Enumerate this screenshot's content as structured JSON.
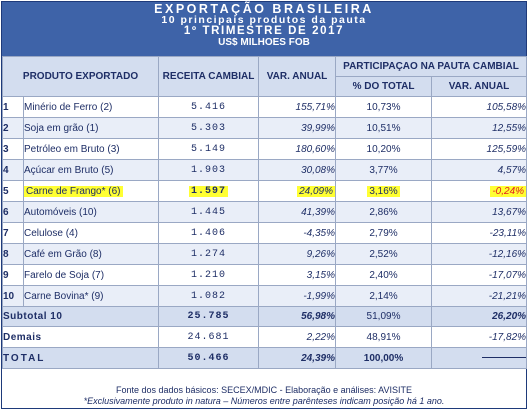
{
  "header": {
    "line1": "EXPORTAÇÃO BRASILEIRA",
    "line2": "10 principais produtos da pauta",
    "line3": "1º TRIMESTRE DE 2017",
    "line4": "US$ MILHOES FOB"
  },
  "columns": {
    "produto": "PRODUTO EXPORTADO",
    "receita": "RECEITA CAMBIAL",
    "var_anual": "VAR. ANUAL",
    "participacao": "PARTICIPAÇAO NA PAUTA CAMBIAL",
    "pct_total": "% DO TOTAL",
    "var_anual2": "VAR. ANUAL"
  },
  "rows": [
    {
      "rank": "1",
      "produto": "Minério de Ferro (2)",
      "receita": "5.416",
      "var": "155,71%",
      "pct": "10,73%",
      "var2": "105,58%"
    },
    {
      "rank": "2",
      "produto": "Soja em grão (1)",
      "receita": "5.303",
      "var": "39,99%",
      "pct": "10,51%",
      "var2": "12,55%"
    },
    {
      "rank": "3",
      "produto": "Petróleo em Bruto (3)",
      "receita": "5.149",
      "var": "180,60%",
      "pct": "10,20%",
      "var2": "125,59%"
    },
    {
      "rank": "4",
      "produto": "Açúcar em Bruto (5)",
      "receita": "1.903",
      "var": "30,08%",
      "pct": "3,77%",
      "var2": "4,57%"
    },
    {
      "rank": "5",
      "produto": "Carne de Frango* (6)",
      "receita": "1.597",
      "var": "24,09%",
      "pct": "3,16%",
      "var2": "-0,24%"
    },
    {
      "rank": "6",
      "produto": "Automóveis (10)",
      "receita": "1.445",
      "var": "41,39%",
      "pct": "2,86%",
      "var2": "13,67%"
    },
    {
      "rank": "7",
      "produto": "Celulose (4)",
      "receita": "1.406",
      "var": "-4,35%",
      "pct": "2,79%",
      "var2": "-23,11%"
    },
    {
      "rank": "8",
      "produto": "Café em Grão (8)",
      "receita": "1.274",
      "var": "9,26%",
      "pct": "2,52%",
      "var2": "-12,16%"
    },
    {
      "rank": "9",
      "produto": "Farelo de Soja (7)",
      "receita": "1.210",
      "var": "3,15%",
      "pct": "2,40%",
      "var2": "-17,07%"
    },
    {
      "rank": "10",
      "produto": "Carne Bovina* (9)",
      "receita": "1.082",
      "var": "-1,99%",
      "pct": "2,14%",
      "var2": "-21,21%"
    }
  ],
  "subtotal": {
    "label": "Subtotal 10",
    "receita": "25.785",
    "var": "56,98%",
    "pct": "51,09%",
    "var2": "26,20%"
  },
  "demais": {
    "label": "Demais",
    "receita": "24.681",
    "var": "2,22%",
    "pct": "48,91%",
    "var2": "-17,82%"
  },
  "total": {
    "label": "TOTAL",
    "receita": "50.466",
    "var": "24,39%",
    "pct": "100,00%"
  },
  "footer": {
    "line1": "Fonte dos dados básicos: SECEX/MDIC - Elaboração e análises: AVISITE",
    "line2": "*Exclusivamente produto in natura – Números entre parênteses indicam posição há 1 ano."
  },
  "colors": {
    "header_bg": "#3e63a8",
    "highlight": "#ffff33",
    "negative": "#e02020",
    "text": "#1e2e66"
  }
}
